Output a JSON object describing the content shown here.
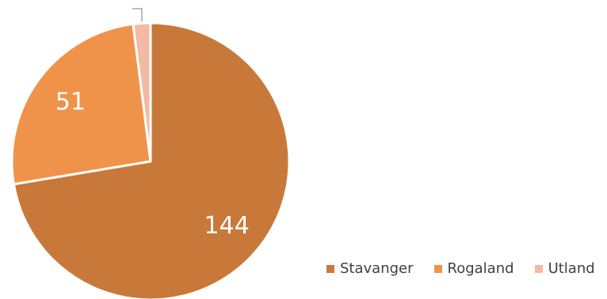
{
  "chart_data": {
    "type": "pie",
    "categories": [
      "Stavanger",
      "Rogaland",
      "Utland"
    ],
    "values": [
      144,
      51,
      4
    ],
    "data_labels": [
      "144",
      "51",
      ""
    ],
    "colors": [
      "#C8793A",
      "#F0934A",
      "#F3B9A5"
    ],
    "legend_position": "bottom-right",
    "title": ""
  }
}
